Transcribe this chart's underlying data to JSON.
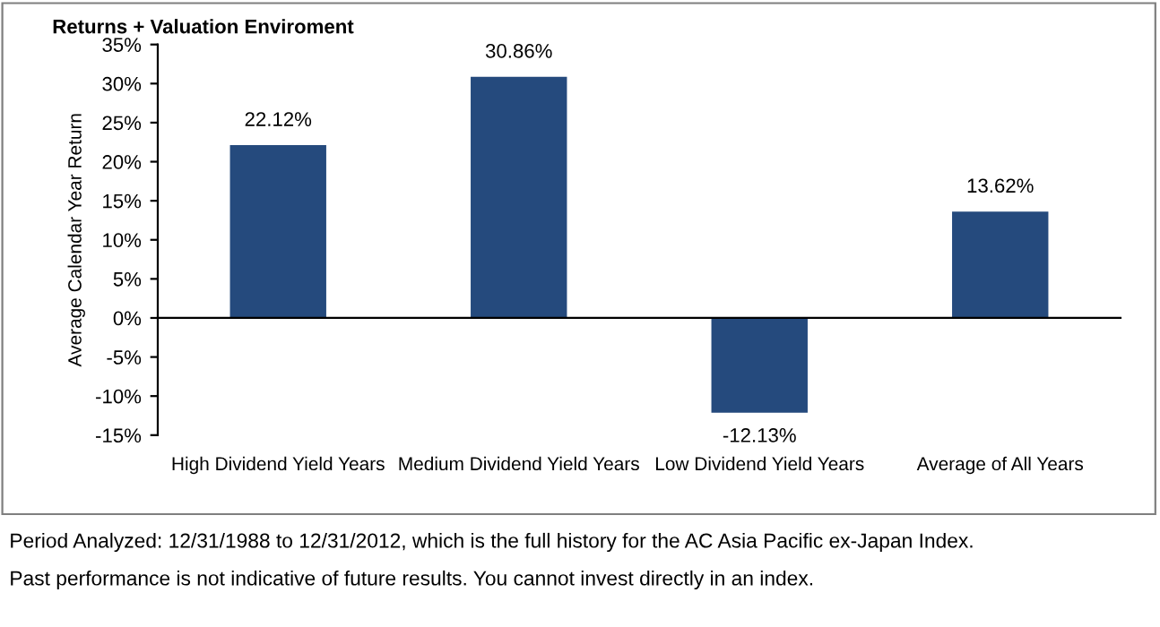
{
  "chart_data": {
    "type": "bar",
    "title": "Returns + Valuation Enviroment",
    "ylabel": "Average Calendar Year Return",
    "categories": [
      "High Dividend Yield Years",
      "Medium Dividend Yield Years",
      "Low Dividend Yield Years",
      "Average of All Years"
    ],
    "values": [
      22.12,
      30.86,
      -12.13,
      13.62
    ],
    "value_labels": [
      "22.12%",
      "30.86%",
      "-12.13%",
      "13.62%"
    ],
    "color": "#254a7d",
    "ylim": [
      -15,
      35
    ],
    "yticks": [
      {
        "value": -15,
        "label": "-15%"
      },
      {
        "value": -10,
        "label": "-10%"
      },
      {
        "value": -5,
        "label": "-5%"
      },
      {
        "value": 0,
        "label": "0%"
      },
      {
        "value": 5,
        "label": "5%"
      },
      {
        "value": 10,
        "label": "10%"
      },
      {
        "value": 15,
        "label": "15%"
      },
      {
        "value": 20,
        "label": "20%"
      },
      {
        "value": 25,
        "label": "25%"
      },
      {
        "value": 30,
        "label": "30%"
      },
      {
        "value": 35,
        "label": "35%"
      }
    ],
    "legend": false,
    "annotations": [
      "Period Analyzed: 12/31/1988 to 12/31/2012, which is the full history for the AC Asia Pacific ex-Japan Index.",
      "Past performance is not indicative of future results. You cannot invest directly in an index."
    ]
  }
}
